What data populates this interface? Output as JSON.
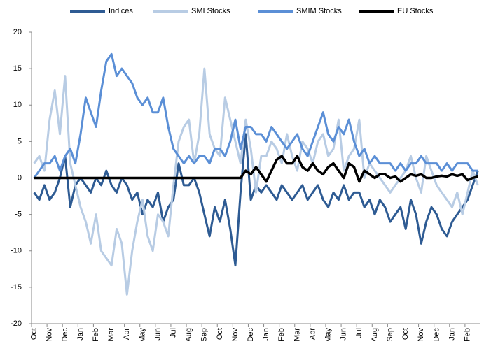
{
  "chart_data": {
    "type": "line",
    "categories": [
      "Oct",
      null,
      null,
      "Nov",
      null,
      null,
      "Dec",
      null,
      null,
      "Jan",
      null,
      null,
      "Feb",
      null,
      null,
      "Mar",
      null,
      null,
      "Apr",
      null,
      null,
      "May",
      null,
      null,
      "Jun",
      null,
      null,
      "Jul",
      null,
      null,
      "Aug",
      null,
      null,
      "Sep",
      null,
      null,
      "Oct",
      null,
      null,
      "Nov",
      null,
      null,
      "Dec",
      null,
      null,
      "Jan",
      null,
      null,
      "Feb",
      null,
      null,
      "Mar",
      null,
      null,
      "Apr",
      null,
      null,
      "May",
      null,
      null,
      "Jun",
      null,
      null,
      "Jul",
      null,
      null,
      "Aug",
      null,
      null,
      "Sep",
      null,
      null,
      "Oct",
      null,
      null,
      "Nov",
      null,
      null,
      "Dec",
      null,
      null,
      "Jan",
      null,
      null,
      "Feb",
      null,
      null
    ],
    "series": [
      {
        "name": "Indices",
        "color": "#2e5b93",
        "values": [
          -2,
          -3,
          -1,
          -3,
          -2,
          0,
          3,
          -4,
          -1,
          0,
          -1,
          -2,
          0,
          -1,
          1,
          -1,
          -2,
          0,
          -1,
          -3,
          -2,
          -5,
          -3,
          -4,
          -2,
          -6,
          -4,
          -3,
          2,
          -1,
          -1,
          0,
          -2,
          -5,
          -8,
          -4,
          -6,
          -3,
          -7,
          -12,
          -2,
          6,
          -3,
          -1,
          -2,
          -1,
          -2,
          -3,
          -1,
          -2,
          -3,
          -2,
          -1,
          -3,
          -2,
          -1,
          -3,
          -4,
          -2,
          -3,
          -1,
          -3,
          -2,
          -2,
          -4,
          -3,
          -5,
          -3,
          -4,
          -6,
          -5,
          -4,
          -7,
          -3,
          -5,
          -9,
          -6,
          -4,
          -5,
          -7,
          -8,
          -6,
          -5,
          -4,
          -3,
          -1,
          1
        ]
      },
      {
        "name": "SMI Stocks",
        "color": "#b8cce4",
        "values": [
          2,
          3,
          1,
          8,
          12,
          6,
          14,
          2,
          -1,
          -4,
          -6,
          -9,
          -5,
          -10,
          -11,
          -12,
          -7,
          -9,
          -16,
          -10,
          -6,
          -3,
          -8,
          -10,
          -5,
          -6,
          -8,
          -1,
          5,
          7,
          8,
          2,
          6,
          15,
          6,
          4,
          3,
          11,
          8,
          5,
          2,
          8,
          4,
          -2,
          3,
          3,
          5,
          4,
          2,
          6,
          3,
          1,
          5,
          4,
          2,
          5,
          6,
          3,
          4,
          8,
          1,
          3,
          4,
          8,
          0,
          2,
          1,
          0,
          -1,
          -2,
          -1,
          0,
          1,
          3,
          0,
          -2,
          3,
          1,
          -1,
          -2,
          -3,
          -4,
          -2,
          -5,
          -2,
          1,
          -1
        ]
      },
      {
        "name": "SMIM Stocks",
        "color": "#5b8fd6",
        "values": [
          0,
          1,
          2,
          2,
          3,
          1,
          3,
          4,
          2,
          6,
          11,
          9,
          7,
          12,
          16,
          17,
          14,
          15,
          14,
          13,
          11,
          10,
          11,
          9,
          9,
          11,
          7,
          4,
          3,
          2,
          3,
          2,
          3,
          3,
          2,
          4,
          4,
          3,
          5,
          8,
          4,
          7,
          7,
          6,
          6,
          5,
          7,
          6,
          5,
          4,
          5,
          6,
          4,
          3,
          5,
          7,
          9,
          6,
          5,
          7,
          6,
          8,
          5,
          3,
          4,
          2,
          3,
          2,
          2,
          2,
          1,
          2,
          1,
          2,
          2,
          3,
          2,
          2,
          2,
          1,
          2,
          1,
          2,
          2,
          2,
          1,
          1
        ]
      },
      {
        "name": "EU Stocks",
        "color": "#000000",
        "values": [
          0,
          0,
          0,
          0,
          0,
          0,
          0,
          0,
          0,
          0,
          0,
          0,
          0,
          0,
          0,
          0,
          0,
          0,
          0,
          0,
          0,
          0,
          0,
          0,
          0,
          0,
          0,
          0,
          0,
          0,
          0,
          0,
          0,
          0,
          0,
          0,
          0,
          0,
          0,
          0,
          0,
          1,
          0.5,
          1.5,
          0.5,
          -0.5,
          1,
          2.5,
          3,
          2,
          2,
          3,
          1.5,
          1,
          2,
          1,
          0.5,
          1.5,
          2,
          1,
          0,
          2,
          1.5,
          -0.5,
          1,
          0.5,
          0,
          0.5,
          0.5,
          0,
          0.2,
          -0.5,
          0,
          0.5,
          0.3,
          0.5,
          0,
          0,
          0.2,
          0.3,
          0.2,
          0.5,
          0.3,
          0.5,
          -0.3,
          0,
          0.2
        ]
      }
    ],
    "ylim": [
      -20,
      20
    ],
    "yticks": [
      -20,
      -15,
      -10,
      -5,
      0,
      5,
      10,
      15,
      20
    ],
    "grid": false,
    "legend": "top"
  }
}
